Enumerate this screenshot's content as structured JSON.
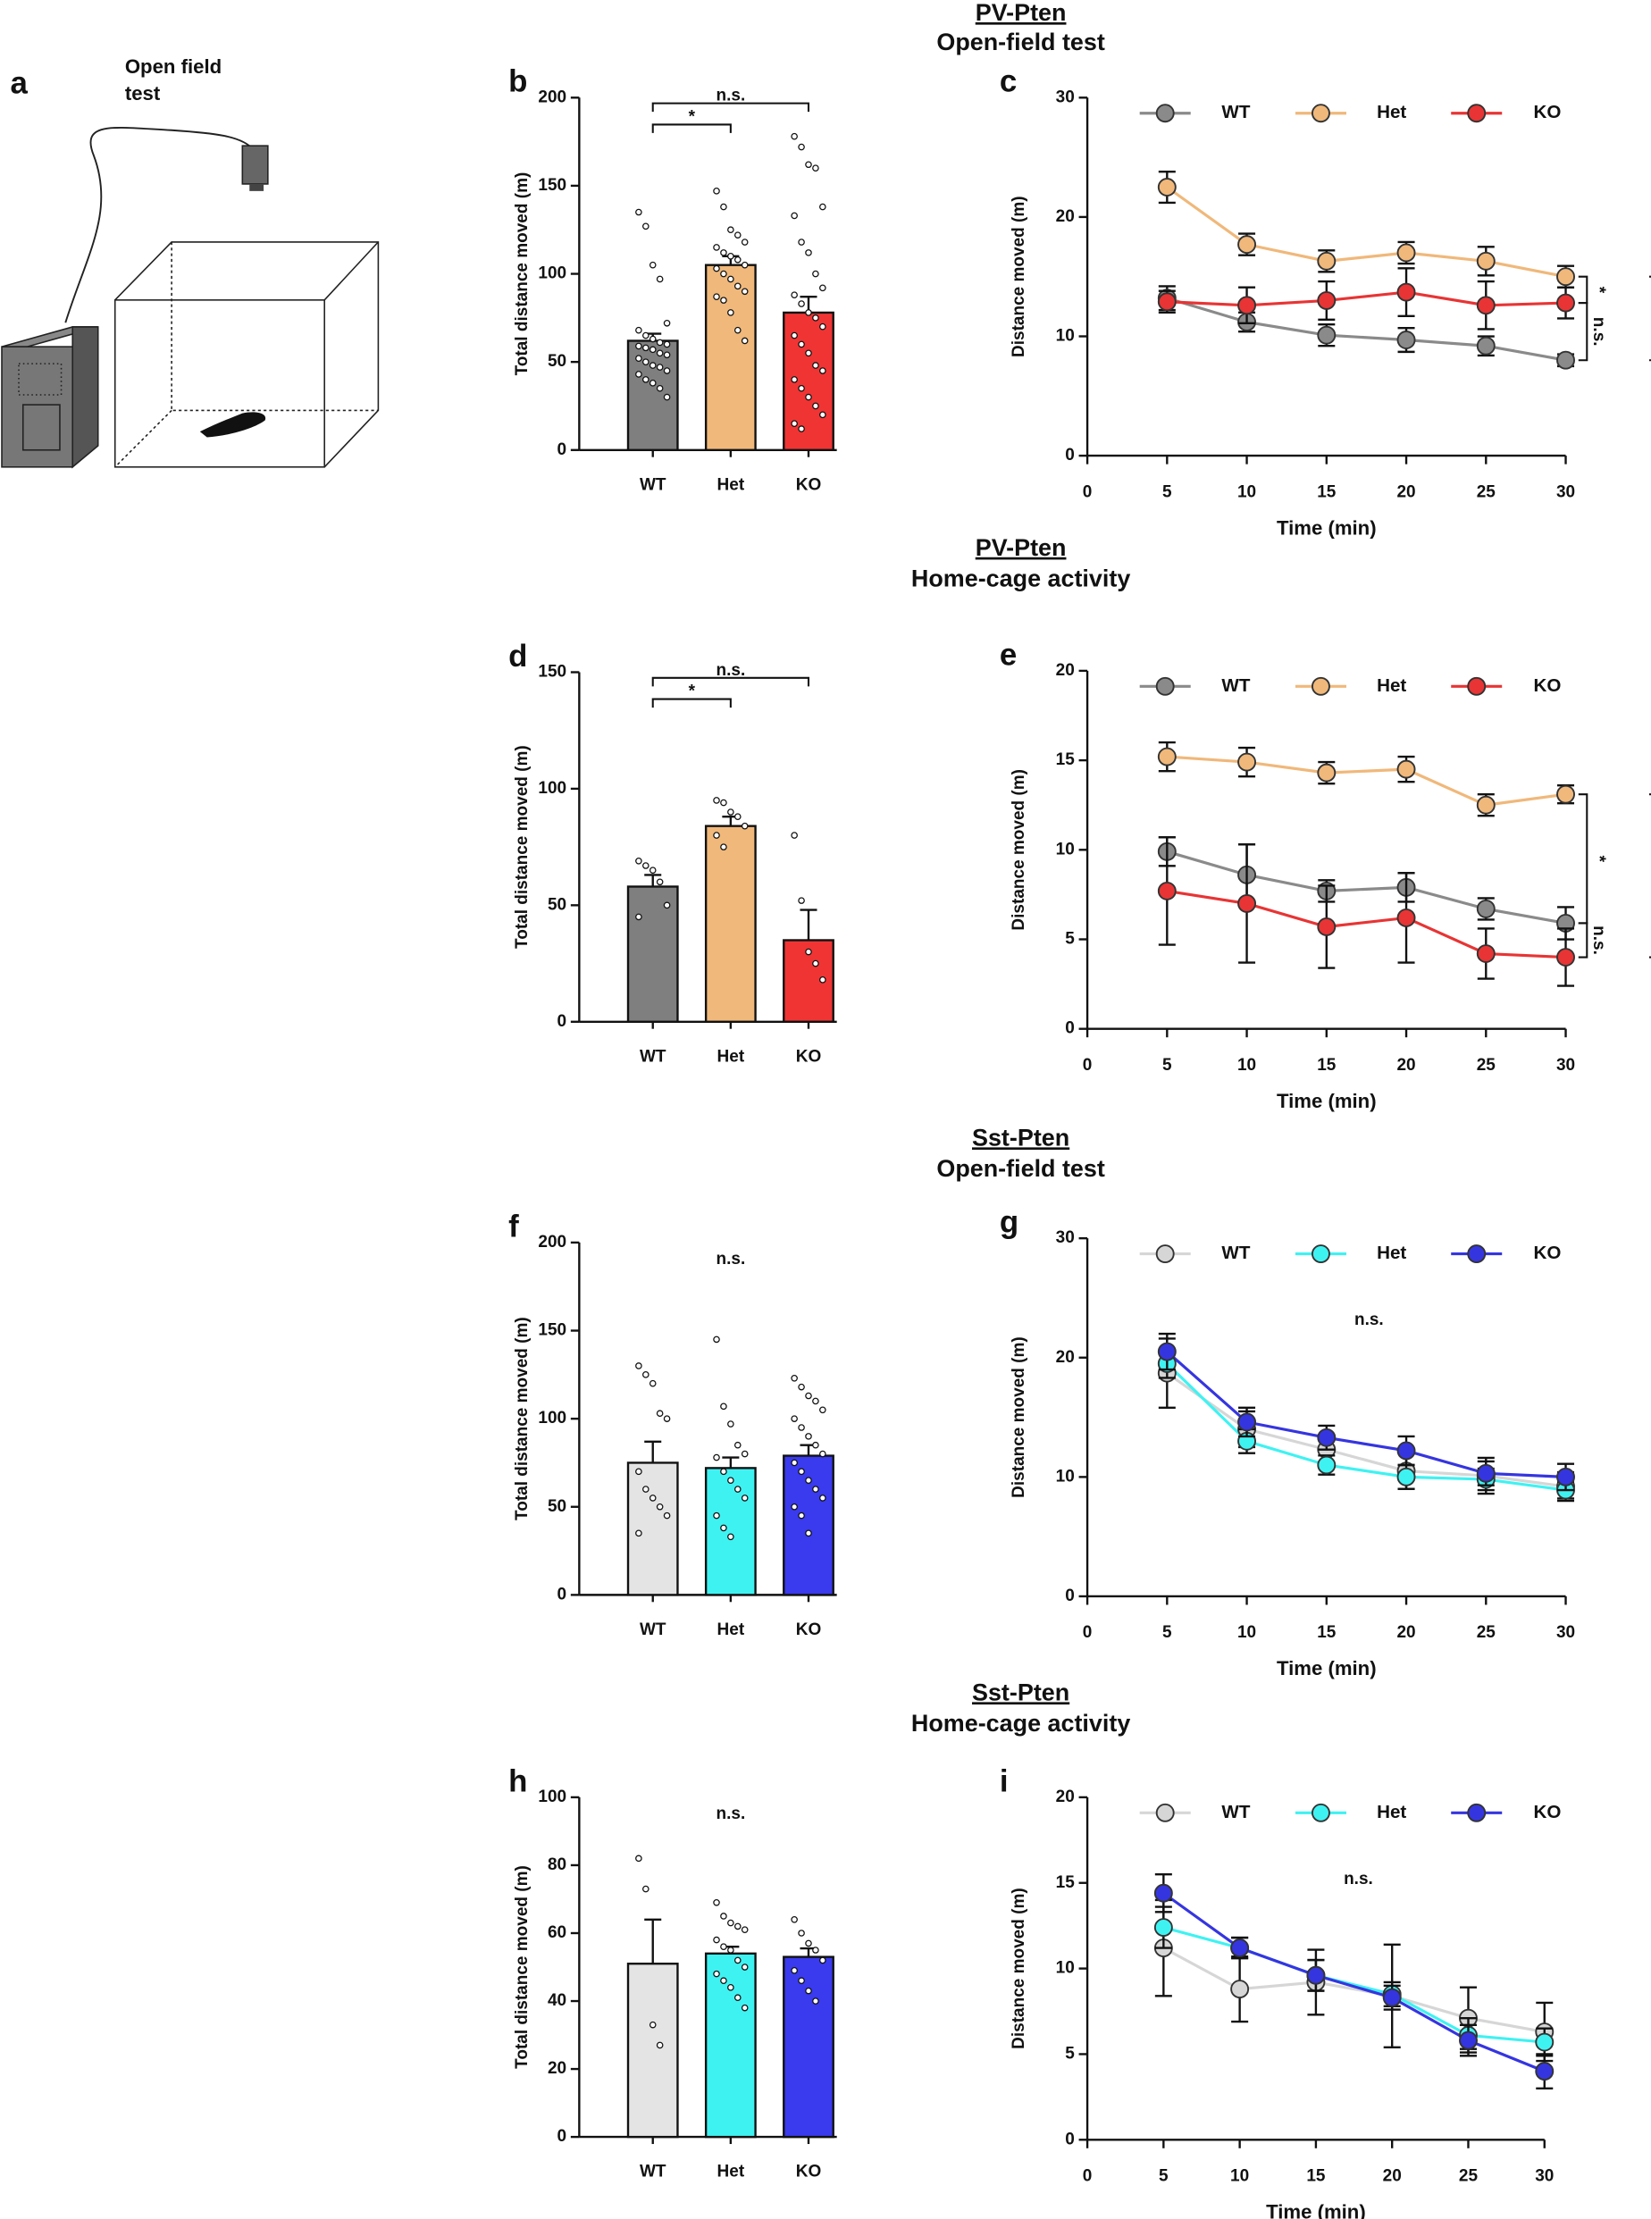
{
  "figure": {
    "panel_a": {
      "label": "a",
      "title_lines": [
        "Open field",
        "test"
      ]
    },
    "sections": [
      {
        "line1": "PV-Pten",
        "line2": "Open-field test"
      },
      {
        "line1": "PV-Pten",
        "line2": "Home-cage activity"
      },
      {
        "line1": "Sst-Pten",
        "line2": "Open-field test"
      },
      {
        "line1": "Sst-Pten",
        "line2": "Home-cage activity"
      }
    ]
  },
  "chart_data": [
    {
      "type": "bar",
      "panel": "b",
      "ylabel": "Total distance moved (m)",
      "categories": [
        "WT",
        "Het",
        "KO"
      ],
      "values": [
        62,
        105,
        78
      ],
      "errors": [
        4,
        5,
        9
      ],
      "colors": [
        "#7f7f7f",
        "#f0b87a",
        "#f03434"
      ],
      "points": [
        [
          135,
          127,
          105,
          97,
          72,
          68,
          65,
          63,
          61,
          60,
          59,
          58,
          57,
          55,
          54,
          52,
          50,
          48,
          47,
          45,
          43,
          40,
          38,
          35,
          30
        ],
        [
          147,
          138,
          125,
          122,
          118,
          115,
          112,
          110,
          108,
          105,
          103,
          100,
          97,
          93,
          90,
          87,
          85,
          78,
          68,
          62
        ],
        [
          178,
          172,
          162,
          160,
          138,
          133,
          118,
          112,
          100,
          92,
          88,
          83,
          78,
          75,
          70,
          65,
          60,
          55,
          48,
          45,
          40,
          35,
          30,
          25,
          20,
          15,
          12
        ]
      ],
      "ylim": [
        0,
        200
      ],
      "yticks": [
        0,
        50,
        100,
        150,
        200
      ],
      "annotations": [
        {
          "text": "n.s.",
          "between": [
            0,
            2
          ]
        },
        {
          "text": "*",
          "between": [
            0,
            1
          ]
        }
      ]
    },
    {
      "type": "line",
      "panel": "c",
      "xlabel": "Time (min)",
      "ylabel": "Distance moved (m)",
      "x": [
        5,
        10,
        15,
        20,
        25,
        30
      ],
      "xlim": [
        0,
        30
      ],
      "xticks": [
        0,
        5,
        10,
        15,
        20,
        25,
        30
      ],
      "ylim": [
        0,
        30
      ],
      "yticks": [
        0,
        10,
        20,
        30
      ],
      "legend": "top",
      "series": [
        {
          "name": "WT",
          "color": "#8a8a8a",
          "values": [
            13.2,
            11.2,
            10.1,
            9.7,
            9.2,
            8.0
          ],
          "errors": [
            1.0,
            0.8,
            0.9,
            1.0,
            0.8,
            0.5
          ]
        },
        {
          "name": "Het",
          "color": "#f0b87a",
          "values": [
            22.5,
            17.7,
            16.3,
            17.0,
            16.3,
            15.0
          ],
          "errors": [
            1.3,
            0.9,
            0.9,
            0.9,
            1.2,
            0.9
          ]
        },
        {
          "name": "KO",
          "color": "#e83434",
          "values": [
            12.9,
            12.6,
            13.0,
            13.7,
            12.6,
            12.8
          ],
          "errors": [
            0.9,
            1.5,
            1.6,
            2.0,
            2.0,
            1.3
          ]
        }
      ],
      "annotations": [
        {
          "text": "*",
          "between": [
            1,
            2
          ]
        },
        {
          "text": "n.s.",
          "between": [
            2,
            0
          ]
        },
        {
          "text": "*",
          "between": [
            1,
            0
          ]
        }
      ]
    },
    {
      "type": "bar",
      "panel": "d",
      "ylabel": "Total distance moved (m)",
      "categories": [
        "WT",
        "Het",
        "KO"
      ],
      "values": [
        58,
        84,
        35
      ],
      "errors": [
        5,
        4,
        13
      ],
      "colors": [
        "#7f7f7f",
        "#f0b87a",
        "#f03434"
      ],
      "points": [
        [
          69,
          67,
          65,
          60,
          50,
          45
        ],
        [
          95,
          94,
          90,
          88,
          84,
          80,
          75
        ],
        [
          80,
          52,
          30,
          25,
          18
        ]
      ],
      "ylim": [
        0,
        150
      ],
      "yticks": [
        0,
        50,
        100,
        150
      ],
      "annotations": [
        {
          "text": "n.s.",
          "between": [
            0,
            2
          ]
        },
        {
          "text": "*",
          "between": [
            0,
            1
          ]
        }
      ]
    },
    {
      "type": "line",
      "panel": "e",
      "xlabel": "Time (min)",
      "ylabel": "Distance moved (m)",
      "x": [
        5,
        10,
        15,
        20,
        25,
        30
      ],
      "xlim": [
        0,
        30
      ],
      "xticks": [
        0,
        5,
        10,
        15,
        20,
        25,
        30
      ],
      "ylim": [
        0,
        20
      ],
      "yticks": [
        0,
        5,
        10,
        15,
        20
      ],
      "legend": "top",
      "series": [
        {
          "name": "WT",
          "color": "#8a8a8a",
          "values": [
            9.9,
            8.6,
            7.7,
            7.9,
            6.7,
            5.9
          ],
          "errors": [
            0.8,
            1.7,
            0.6,
            0.8,
            0.6,
            0.9
          ]
        },
        {
          "name": "Het",
          "color": "#f0b87a",
          "values": [
            15.2,
            14.9,
            14.3,
            14.5,
            12.5,
            13.1
          ],
          "errors": [
            0.8,
            0.8,
            0.6,
            0.7,
            0.6,
            0.5
          ]
        },
        {
          "name": "KO",
          "color": "#e83434",
          "values": [
            7.7,
            7.0,
            5.7,
            6.2,
            4.2,
            4.0
          ],
          "errors": [
            3.0,
            3.3,
            2.3,
            2.5,
            1.4,
            1.6
          ]
        }
      ],
      "annotations": [
        {
          "text": "*",
          "between": [
            1,
            0
          ]
        },
        {
          "text": "n.s.",
          "between": [
            0,
            2
          ]
        },
        {
          "text": "*",
          "between": [
            1,
            2
          ]
        }
      ]
    },
    {
      "type": "bar",
      "panel": "f",
      "ylabel": "Total distance moved (m)",
      "categories": [
        "WT",
        "Het",
        "KO"
      ],
      "values": [
        75,
        72,
        79
      ],
      "errors": [
        12,
        6,
        6
      ],
      "colors": [
        "#e4e4e4",
        "#3ff2f2",
        "#3a3aee"
      ],
      "points": [
        [
          130,
          125,
          120,
          103,
          100,
          70,
          60,
          55,
          50,
          45,
          35
        ],
        [
          145,
          107,
          97,
          85,
          80,
          78,
          70,
          65,
          60,
          55,
          45,
          38,
          33
        ],
        [
          123,
          118,
          113,
          110,
          105,
          100,
          95,
          90,
          85,
          80,
          75,
          70,
          65,
          60,
          55,
          50,
          45,
          35
        ]
      ],
      "ylim": [
        0,
        200
      ],
      "yticks": [
        0,
        50,
        100,
        150,
        200
      ],
      "annotations": [
        {
          "text": "n.s."
        }
      ]
    },
    {
      "type": "line",
      "panel": "g",
      "xlabel": "Time (min)",
      "ylabel": "Distance moved (m)",
      "x": [
        5,
        10,
        15,
        20,
        25,
        30
      ],
      "xlim": [
        0,
        30
      ],
      "xticks": [
        0,
        5,
        10,
        15,
        20,
        25,
        30
      ],
      "ylim": [
        0,
        30
      ],
      "yticks": [
        0,
        10,
        20,
        30
      ],
      "legend": "top",
      "series": [
        {
          "name": "WT",
          "color": "#d6d6d6",
          "values": [
            18.7,
            14.0,
            12.3,
            10.5,
            10.1,
            9.2
          ],
          "errors": [
            2.9,
            1.5,
            1.2,
            1.5,
            1.5,
            1.2
          ]
        },
        {
          "name": "Het",
          "color": "#3ff2f2",
          "values": [
            19.5,
            13.0,
            11.0,
            10.0,
            9.8,
            8.9
          ],
          "errors": [
            1.2,
            1.0,
            0.8,
            1.0,
            0.9,
            0.7
          ]
        },
        {
          "name": "KO",
          "color": "#3535e0",
          "values": [
            20.5,
            14.6,
            13.3,
            12.2,
            10.3,
            10.0
          ],
          "errors": [
            1.5,
            1.2,
            1.0,
            1.2,
            1.0,
            1.1
          ]
        }
      ],
      "annotations": [
        {
          "text": "n.s."
        }
      ]
    },
    {
      "type": "bar",
      "panel": "h",
      "ylabel": "Total distance moved (m)",
      "categories": [
        "WT",
        "Het",
        "KO"
      ],
      "values": [
        51,
        54,
        53
      ],
      "errors": [
        13,
        2,
        2.5
      ],
      "colors": [
        "#e4e4e4",
        "#3ff2f2",
        "#3a3aee"
      ],
      "points": [
        [
          82,
          73,
          33,
          27
        ],
        [
          69,
          65,
          63,
          62,
          61,
          58,
          56,
          55,
          52,
          50,
          48,
          46,
          44,
          41,
          38
        ],
        [
          64,
          60,
          57,
          55,
          52,
          49,
          46,
          43,
          40
        ]
      ],
      "ylim": [
        0,
        100
      ],
      "yticks": [
        0,
        20,
        40,
        60,
        80,
        100
      ],
      "annotations": [
        {
          "text": "n.s."
        }
      ]
    },
    {
      "type": "line",
      "panel": "i",
      "xlabel": "Time (min)",
      "ylabel": "Distance moved (m)",
      "x": [
        5,
        10,
        15,
        20,
        25,
        30
      ],
      "xlim": [
        0,
        30
      ],
      "xticks": [
        0,
        5,
        10,
        15,
        20,
        25,
        30
      ],
      "ylim": [
        0,
        20
      ],
      "yticks": [
        0,
        5,
        10,
        15,
        20
      ],
      "legend": "top",
      "series": [
        {
          "name": "WT",
          "color": "#d6d6d6",
          "values": [
            11.2,
            8.8,
            9.2,
            8.4,
            7.1,
            6.3
          ],
          "errors": [
            2.8,
            1.9,
            1.9,
            3.0,
            1.8,
            1.7
          ]
        },
        {
          "name": "Het",
          "color": "#3ff2f2",
          "values": [
            12.4,
            11.2,
            9.6,
            8.5,
            6.1,
            5.7
          ],
          "errors": [
            1.2,
            0.6,
            0.9,
            0.7,
            1.0,
            0.8
          ]
        },
        {
          "name": "KO",
          "color": "#3535e0",
          "values": [
            14.4,
            11.2,
            9.6,
            8.3,
            5.8,
            4.0
          ],
          "errors": [
            1.1,
            0.6,
            0.9,
            0.7,
            0.9,
            1.0
          ]
        }
      ],
      "annotations": [
        {
          "text": "n.s."
        }
      ]
    }
  ]
}
